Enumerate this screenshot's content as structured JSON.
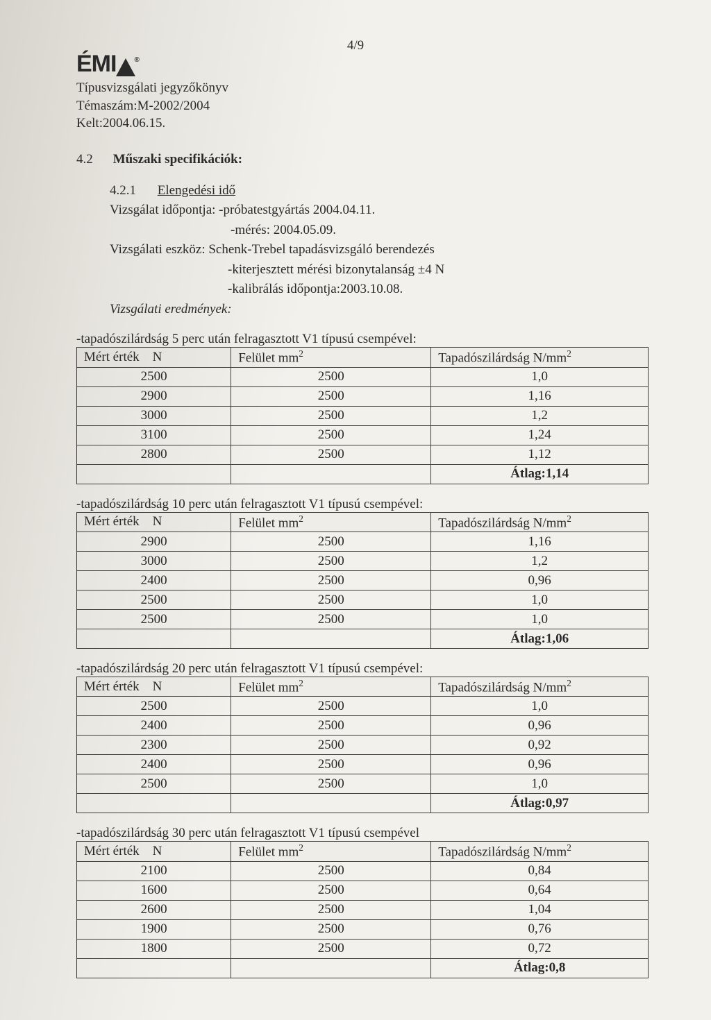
{
  "page_number": "4/9",
  "logo_text": "ÉMI",
  "header": {
    "line1": "Típusvizsgálati jegyzőkönyv",
    "line2": "Témaszám:M-2002/2004",
    "line3": "Kelt:2004.06.15."
  },
  "section": {
    "number": "4.2",
    "title": "Műszaki specifikációk:"
  },
  "subsection": {
    "number": "4.2.1",
    "title": "Elengedési idő",
    "l1": "Vizsgálat időpontja: -próbatestgyártás 2004.04.11.",
    "l2": "-mérés: 2004.05.09.",
    "l3": "Vizsgálati eszköz: Schenk-Trebel tapadásvizsgáló berendezés",
    "l4": "-kiterjesztett mérési bizonytalanság ±4 N",
    "l5": "-kalibrálás időpontja:2003.10.08.",
    "l6": "Vizsgálati eredmények:"
  },
  "col_headers": {
    "c1a": "Mért érték",
    "c1b": "N",
    "c2a": "Felület mm",
    "c2sup": "2",
    "c3a": "Tapadószilárdság N/mm",
    "c3sup": "2"
  },
  "tables": [
    {
      "caption": "-tapadószilárdság 5 perc után felragasztott V1 típusú csempével:",
      "rows": [
        [
          "2500",
          "2500",
          "1,0"
        ],
        [
          "2900",
          "2500",
          "1,16"
        ],
        [
          "3000",
          "2500",
          "1,2"
        ],
        [
          "3100",
          "2500",
          "1,24"
        ],
        [
          "2800",
          "2500",
          "1,12"
        ]
      ],
      "avg": "Átlag:1,14"
    },
    {
      "caption": "-tapadószilárdság 10 perc után felragasztott V1 típusú csempével:",
      "rows": [
        [
          "2900",
          "2500",
          "1,16"
        ],
        [
          "3000",
          "2500",
          "1,2"
        ],
        [
          "2400",
          "2500",
          "0,96"
        ],
        [
          "2500",
          "2500",
          "1,0"
        ],
        [
          "2500",
          "2500",
          "1,0"
        ]
      ],
      "avg": "Átlag:1,06"
    },
    {
      "caption": "-tapadószilárdság 20 perc után felragasztott V1 típusú csempével:",
      "rows": [
        [
          "2500",
          "2500",
          "1,0"
        ],
        [
          "2400",
          "2500",
          "0,96"
        ],
        [
          "2300",
          "2500",
          "0,92"
        ],
        [
          "2400",
          "2500",
          "0,96"
        ],
        [
          "2500",
          "2500",
          "1,0"
        ]
      ],
      "avg": "Átlag:0,97"
    },
    {
      "caption": "-tapadószilárdság 30 perc után felragasztott V1 típusú csempével",
      "rows": [
        [
          "2100",
          "2500",
          "0,84"
        ],
        [
          "1600",
          "2500",
          "0,64"
        ],
        [
          "2600",
          "2500",
          "1,04"
        ],
        [
          "1900",
          "2500",
          "0,76"
        ],
        [
          "1800",
          "2500",
          "0,72"
        ]
      ],
      "avg": "Átlag:0,8"
    }
  ],
  "colors": {
    "text": "#2a2a2a",
    "border": "#3a3a3a",
    "bg_left": "#d7d4cd",
    "bg_right": "#f3f1ec"
  },
  "fontsize_body_pt": 14
}
